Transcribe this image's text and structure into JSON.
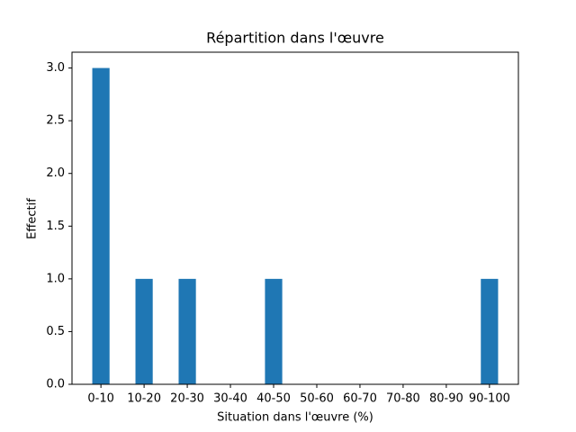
{
  "chart_data": {
    "type": "bar",
    "title": "Répartition dans l'œuvre",
    "xlabel": "Situation dans l'œuvre (%)",
    "ylabel": "Effectif",
    "categories": [
      "0-10",
      "10-20",
      "20-30",
      "30-40",
      "40-50",
      "50-60",
      "60-70",
      "70-80",
      "80-90",
      "90-100"
    ],
    "values": [
      3,
      1,
      1,
      0,
      1,
      0,
      0,
      0,
      0,
      1
    ],
    "color": "#1f77b4",
    "ylim": [
      0,
      3.15
    ],
    "yticks": [
      {
        "value": 0,
        "label": "0.0"
      },
      0.5,
      {
        "value": 1,
        "label": "1.0"
      },
      1.5,
      {
        "value": 2,
        "label": "2.0"
      },
      2.5,
      {
        "value": 3,
        "label": "3.0"
      }
    ],
    "grid": false
  }
}
